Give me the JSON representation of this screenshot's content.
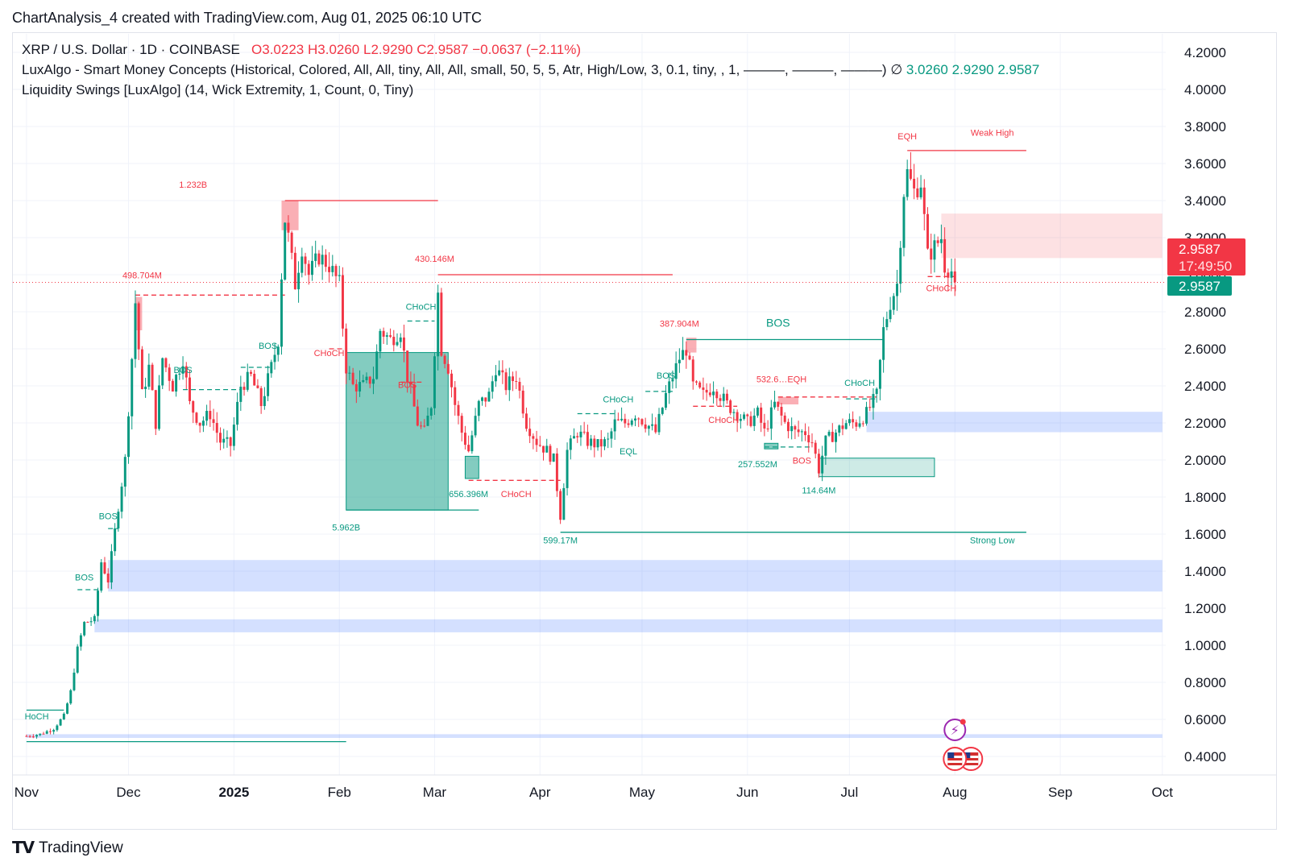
{
  "header": {
    "caption": "ChartAnalysis_4 created with TradingView.com, Aug 01, 2025 06:10 UTC"
  },
  "legend": {
    "symbol_line": {
      "symbol": "XRP / U.S. Dollar · 1D · COINBASE",
      "open": "O3.0223",
      "high": "H3.0260",
      "low": "L2.9290",
      "close": "C2.9587",
      "change": "−0.0637 (−2.11%)"
    },
    "indicator1": {
      "text": "LuxAlgo - Smart Money Concepts (Historical, Colored, All, All, tiny, All, All, small, 50, 5, 5, Atr, High/Low, 3, 0.1, tiny, , 1, ———, ———, ———)",
      "sep": "∅",
      "v1": "3.0260",
      "v2": "2.9290",
      "v3": "2.9587"
    },
    "indicator2": {
      "text": "Liquidity Swings [LuxAlgo] (14, Wick Extremity, 1, Count, 0, Tiny)"
    }
  },
  "footer": {
    "brand": "TradingView",
    "mark_icon": "tradingview-logo-icon"
  },
  "price_tags": {
    "last_price": "2.9587",
    "countdown": "17:49:50",
    "close_price": "2.9587"
  },
  "colors": {
    "up": "#089981",
    "down": "#f23645",
    "blue_zone": "#2962ff",
    "grid": "#f0f3fa",
    "axis_text": "#131722"
  },
  "chart_data": {
    "type": "candlestick",
    "title": "XRP / U.S. Dollar · 1D · COINBASE",
    "ylim": [
      0.3,
      4.3
    ],
    "y_ticks": [
      "0.4000",
      "0.6000",
      "0.8000",
      "1.0000",
      "1.2000",
      "1.4000",
      "1.6000",
      "1.8000",
      "2.0000",
      "2.2000",
      "2.4000",
      "2.6000",
      "2.8000",
      "3.0000",
      "3.2000",
      "3.4000",
      "3.6000",
      "3.8000",
      "4.0000",
      "4.2000"
    ],
    "x_ticks": [
      {
        "label": "Nov",
        "date": "2024-11-01"
      },
      {
        "label": "Dec",
        "date": "2024-12-01"
      },
      {
        "label": "2025",
        "date": "2025-01-01"
      },
      {
        "label": "Feb",
        "date": "2025-02-01"
      },
      {
        "label": "Mar",
        "date": "2025-03-01"
      },
      {
        "label": "Apr",
        "date": "2025-04-01"
      },
      {
        "label": "May",
        "date": "2025-05-01"
      },
      {
        "label": "Jun",
        "date": "2025-06-01"
      },
      {
        "label": "Jul",
        "date": "2025-07-01"
      },
      {
        "label": "Aug",
        "date": "2025-08-01"
      },
      {
        "label": "Sep",
        "date": "2025-09-01"
      },
      {
        "label": "Oct",
        "date": "2025-10-01"
      }
    ],
    "price_path": [
      [
        "2024-11-01",
        0.51
      ],
      [
        "2024-11-05",
        0.52
      ],
      [
        "2024-11-09",
        0.55
      ],
      [
        "2024-11-12",
        0.62
      ],
      [
        "2024-11-14",
        0.75
      ],
      [
        "2024-11-16",
        0.98
      ],
      [
        "2024-11-18",
        1.12
      ],
      [
        "2024-11-21",
        1.14
      ],
      [
        "2024-11-23",
        1.45
      ],
      [
        "2024-11-25",
        1.35
      ],
      [
        "2024-11-28",
        1.75
      ],
      [
        "2024-11-30",
        2.0
      ],
      [
        "2024-12-02",
        2.55
      ],
      [
        "2024-12-03",
        2.85
      ],
      [
        "2024-12-05",
        2.35
      ],
      [
        "2024-12-07",
        2.5
      ],
      [
        "2024-12-09",
        2.2
      ],
      [
        "2024-12-11",
        2.55
      ],
      [
        "2024-12-14",
        2.4
      ],
      [
        "2024-12-17",
        2.55
      ],
      [
        "2024-12-19",
        2.3
      ],
      [
        "2024-12-22",
        2.2
      ],
      [
        "2024-12-25",
        2.25
      ],
      [
        "2024-12-28",
        2.1
      ],
      [
        "2024-12-31",
        2.08
      ],
      [
        "2025-01-03",
        2.4
      ],
      [
        "2025-01-06",
        2.45
      ],
      [
        "2025-01-09",
        2.3
      ],
      [
        "2025-01-12",
        2.5
      ],
      [
        "2025-01-14",
        2.65
      ],
      [
        "2025-01-15",
        3.0
      ],
      [
        "2025-01-16",
        3.3
      ],
      [
        "2025-01-17",
        3.2
      ],
      [
        "2025-01-19",
        2.95
      ],
      [
        "2025-01-21",
        3.15
      ],
      [
        "2025-01-23",
        3.0
      ],
      [
        "2025-01-26",
        3.1
      ],
      [
        "2025-01-29",
        3.05
      ],
      [
        "2025-02-01",
        2.95
      ],
      [
        "2025-02-03",
        2.5
      ],
      [
        "2025-02-05",
        2.4
      ],
      [
        "2025-02-08",
        2.4
      ],
      [
        "2025-02-11",
        2.45
      ],
      [
        "2025-02-13",
        2.7
      ],
      [
        "2025-02-16",
        2.65
      ],
      [
        "2025-02-19",
        2.7
      ],
      [
        "2025-02-21",
        2.45
      ],
      [
        "2025-02-24",
        2.2
      ],
      [
        "2025-02-26",
        2.15
      ],
      [
        "2025-02-28",
        2.3
      ],
      [
        "2025-03-02",
        2.9
      ],
      [
        "2025-03-03",
        2.6
      ],
      [
        "2025-03-05",
        2.5
      ],
      [
        "2025-03-07",
        2.3
      ],
      [
        "2025-03-09",
        2.15
      ],
      [
        "2025-03-11",
        2.05
      ],
      [
        "2025-03-14",
        2.3
      ],
      [
        "2025-03-17",
        2.35
      ],
      [
        "2025-03-19",
        2.5
      ],
      [
        "2025-03-22",
        2.4
      ],
      [
        "2025-03-25",
        2.45
      ],
      [
        "2025-03-28",
        2.2
      ],
      [
        "2025-03-31",
        2.1
      ],
      [
        "2025-04-03",
        2.05
      ],
      [
        "2025-04-05",
        2.0
      ],
      [
        "2025-04-07",
        1.7
      ],
      [
        "2025-04-09",
        2.05
      ],
      [
        "2025-04-12",
        2.15
      ],
      [
        "2025-04-15",
        2.1
      ],
      [
        "2025-04-18",
        2.08
      ],
      [
        "2025-04-21",
        2.1
      ],
      [
        "2025-04-23",
        2.2
      ],
      [
        "2025-04-26",
        2.2
      ],
      [
        "2025-04-29",
        2.25
      ],
      [
        "2025-05-02",
        2.2
      ],
      [
        "2025-05-05",
        2.15
      ],
      [
        "2025-05-08",
        2.35
      ],
      [
        "2025-05-10",
        2.45
      ],
      [
        "2025-05-12",
        2.55
      ],
      [
        "2025-05-14",
        2.6
      ],
      [
        "2025-05-16",
        2.4
      ],
      [
        "2025-05-19",
        2.35
      ],
      [
        "2025-05-22",
        2.4
      ],
      [
        "2025-05-26",
        2.3
      ],
      [
        "2025-05-29",
        2.25
      ],
      [
        "2025-06-01",
        2.2
      ],
      [
        "2025-06-04",
        2.25
      ],
      [
        "2025-06-06",
        2.15
      ],
      [
        "2025-06-09",
        2.3
      ],
      [
        "2025-06-12",
        2.2
      ],
      [
        "2025-06-15",
        2.15
      ],
      [
        "2025-06-18",
        2.15
      ],
      [
        "2025-06-20",
        2.1
      ],
      [
        "2025-06-22",
        1.95
      ],
      [
        "2025-06-24",
        2.1
      ],
      [
        "2025-06-27",
        2.15
      ],
      [
        "2025-06-30",
        2.2
      ],
      [
        "2025-07-03",
        2.2
      ],
      [
        "2025-07-06",
        2.25
      ],
      [
        "2025-07-09",
        2.35
      ],
      [
        "2025-07-11",
        2.7
      ],
      [
        "2025-07-13",
        2.85
      ],
      [
        "2025-07-15",
        2.95
      ],
      [
        "2025-07-17",
        3.45
      ],
      [
        "2025-07-18",
        3.55
      ],
      [
        "2025-07-20",
        3.45
      ],
      [
        "2025-07-22",
        3.5
      ],
      [
        "2025-07-23",
        3.3
      ],
      [
        "2025-07-24",
        3.1
      ],
      [
        "2025-07-26",
        3.15
      ],
      [
        "2025-07-28",
        3.2
      ],
      [
        "2025-07-29",
        3.05
      ],
      [
        "2025-07-31",
        3.02
      ],
      [
        "2025-08-01",
        2.9587
      ]
    ],
    "liquidity_zones": [
      {
        "color": "blue",
        "y_low": 1.29,
        "y_high": 1.46,
        "x_from": "2024-11-25",
        "x_to": "2025-10-01"
      },
      {
        "color": "blue",
        "y_low": 1.07,
        "y_high": 1.14,
        "x_from": "2024-11-21",
        "x_to": "2025-10-01"
      },
      {
        "color": "blue",
        "y_low": 0.5,
        "y_high": 0.52,
        "x_from": "2024-11-01",
        "x_to": "2025-10-01"
      },
      {
        "color": "blue",
        "y_low": 2.15,
        "y_high": 2.26,
        "x_from": "2025-07-06",
        "x_to": "2025-10-01"
      },
      {
        "color": "red",
        "y_low": 3.09,
        "y_high": 3.33,
        "x_from": "2025-07-28",
        "x_to": "2025-10-01"
      }
    ],
    "order_blocks": [
      {
        "color": "green",
        "y_low": 1.73,
        "y_high": 2.58,
        "x_from": "2025-02-03",
        "x_to": "2025-03-05"
      },
      {
        "color": "green",
        "y_low": 1.9,
        "y_high": 2.02,
        "x_from": "2025-03-10",
        "x_to": "2025-03-14"
      },
      {
        "color": "lightgreen",
        "y_low": 1.91,
        "y_high": 2.01,
        "x_from": "2025-06-22",
        "x_to": "2025-07-26"
      },
      {
        "color": "green",
        "y_low": 2.06,
        "y_high": 2.09,
        "x_from": "2025-06-06",
        "x_to": "2025-06-10"
      },
      {
        "color": "red",
        "y_low": 3.24,
        "y_high": 3.4,
        "x_from": "2025-01-15",
        "x_to": "2025-01-20"
      },
      {
        "color": "red",
        "y_low": 2.7,
        "y_high": 2.88,
        "x_from": "2024-12-03",
        "x_to": "2024-12-05"
      },
      {
        "color": "red",
        "y_low": 2.58,
        "y_high": 2.66,
        "x_from": "2025-05-14",
        "x_to": "2025-05-17"
      },
      {
        "color": "red",
        "y_low": 2.3,
        "y_high": 2.34,
        "x_from": "2025-06-10",
        "x_to": "2025-06-16"
      }
    ],
    "levels": [
      {
        "color": "red",
        "style": "solid",
        "y": 3.4,
        "x_from": "2025-01-16",
        "x_to": "2025-03-02"
      },
      {
        "color": "red",
        "style": "solid",
        "y": 3.0,
        "x_from": "2025-03-02",
        "x_to": "2025-05-10"
      },
      {
        "color": "red",
        "style": "dashed",
        "y": 2.89,
        "x_from": "2024-12-03",
        "x_to": "2025-01-16"
      },
      {
        "color": "red",
        "style": "solid",
        "y": 3.67,
        "x_from": "2025-07-18",
        "x_to": "2025-08-22"
      },
      {
        "color": "green",
        "style": "solid",
        "y": 1.61,
        "x_from": "2025-04-07",
        "x_to": "2025-08-22"
      },
      {
        "color": "green",
        "style": "solid",
        "y": 2.65,
        "x_from": "2025-05-14",
        "x_to": "2025-07-11"
      },
      {
        "color": "green",
        "style": "solid",
        "y": 1.73,
        "x_from": "2025-02-03",
        "x_to": "2025-03-14"
      },
      {
        "color": "green",
        "style": "solid",
        "y": 0.48,
        "x_from": "2024-11-01",
        "x_to": "2025-02-03"
      },
      {
        "color": "green",
        "style": "solid",
        "y": 0.65,
        "x_from": "2024-11-01",
        "x_to": "2024-11-12"
      },
      {
        "color": "red",
        "style": "dashed",
        "y": 1.89,
        "x_from": "2025-03-11",
        "x_to": "2025-04-07"
      },
      {
        "color": "red",
        "style": "dashed",
        "y": 2.34,
        "x_from": "2025-06-10",
        "x_to": "2025-07-09"
      },
      {
        "color": "green",
        "style": "dashed",
        "y": 2.5,
        "x_from": "2025-01-03",
        "x_to": "2025-01-12"
      },
      {
        "color": "green",
        "style": "dashed",
        "y": 2.38,
        "x_from": "2024-12-17",
        "x_to": "2025-01-03"
      },
      {
        "color": "green",
        "style": "dashed",
        "y": 1.63,
        "x_from": "2024-11-25",
        "x_to": "2024-11-28"
      },
      {
        "color": "green",
        "style": "dashed",
        "y": 1.3,
        "x_from": "2024-11-16",
        "x_to": "2024-11-23"
      },
      {
        "color": "green",
        "style": "dashed",
        "y": 2.75,
        "x_from": "2025-02-21",
        "x_to": "2025-03-01"
      },
      {
        "color": "green",
        "style": "dashed",
        "y": 2.25,
        "x_from": "2025-04-12",
        "x_to": "2025-04-23"
      },
      {
        "color": "green",
        "style": "dashed",
        "y": 2.37,
        "x_from": "2025-05-02",
        "x_to": "2025-05-10"
      },
      {
        "color": "red",
        "style": "dashed",
        "y": 2.6,
        "x_from": "2025-01-29",
        "x_to": "2025-02-03"
      },
      {
        "color": "red",
        "style": "dashed",
        "y": 2.99,
        "x_from": "2025-07-24",
        "x_to": "2025-08-01"
      },
      {
        "color": "red",
        "style": "dashed",
        "y": 2.29,
        "x_from": "2025-05-16",
        "x_to": "2025-05-29"
      },
      {
        "color": "green",
        "style": "dashed",
        "y": 2.33,
        "x_from": "2025-06-30",
        "x_to": "2025-07-09"
      },
      {
        "color": "green",
        "style": "dashed",
        "y": 2.07,
        "x_from": "2025-06-06",
        "x_to": "2025-06-20"
      },
      {
        "color": "red",
        "style": "dashed",
        "y": 2.42,
        "x_from": "2025-02-19",
        "x_to": "2025-02-26"
      }
    ],
    "labels": [
      {
        "text": "EQH",
        "color": "red",
        "x": "2025-07-18",
        "y": 3.73
      },
      {
        "text": "Weak High",
        "color": "red",
        "x": "2025-08-12",
        "y": 3.75
      },
      {
        "text": "1.232B",
        "color": "red",
        "x": "2024-12-20",
        "y": 3.47
      },
      {
        "text": "430.146M",
        "color": "red",
        "x": "2025-03-01",
        "y": 3.07
      },
      {
        "text": "498.704M",
        "color": "red",
        "x": "2024-12-05",
        "y": 2.98
      },
      {
        "text": "CHoCH",
        "color": "green",
        "x": "2025-02-25",
        "y": 2.81
      },
      {
        "text": "387.904M",
        "color": "red",
        "x": "2025-05-12",
        "y": 2.72
      },
      {
        "text": "BOS",
        "color": "green",
        "x": "2025-06-10",
        "y": 2.72
      },
      {
        "text": "BOS",
        "color": "green",
        "x": "2025-01-11",
        "y": 2.6
      },
      {
        "text": "CHoCH",
        "color": "red",
        "x": "2025-01-29",
        "y": 2.56
      },
      {
        "text": "BOS",
        "color": "green",
        "x": "2024-12-17",
        "y": 2.47
      },
      {
        "text": "BOS",
        "color": "green",
        "x": "2025-05-08",
        "y": 2.44
      },
      {
        "text": "532.6…EQH",
        "color": "red",
        "x": "2025-06-11",
        "y": 2.42
      },
      {
        "text": "BOS",
        "color": "red",
        "x": "2025-02-21",
        "y": 2.39
      },
      {
        "text": "CHoCH",
        "color": "green",
        "x": "2025-07-04",
        "y": 2.4
      },
      {
        "text": "CHoCH",
        "color": "green",
        "x": "2025-04-24",
        "y": 2.31
      },
      {
        "text": "CHoCH",
        "color": "red",
        "x": "2025-05-25",
        "y": 2.2
      },
      {
        "text": "CHoCH",
        "color": "red",
        "x": "2025-07-28",
        "y": 2.91
      },
      {
        "text": "EQL",
        "color": "green",
        "x": "2025-04-27",
        "y": 2.03
      },
      {
        "text": "257.552M",
        "color": "green",
        "x": "2025-06-04",
        "y": 1.96
      },
      {
        "text": "BOS",
        "color": "red",
        "x": "2025-06-17",
        "y": 1.98
      },
      {
        "text": "656.396M",
        "color": "green",
        "x": "2025-03-11",
        "y": 1.8
      },
      {
        "text": "CHoCH",
        "color": "red",
        "x": "2025-03-25",
        "y": 1.8
      },
      {
        "text": "114.64M",
        "color": "green",
        "x": "2025-06-22",
        "y": 1.82
      },
      {
        "text": "5.962B",
        "color": "green",
        "x": "2025-02-03",
        "y": 1.62
      },
      {
        "text": "599.17M",
        "color": "green",
        "x": "2025-04-07",
        "y": 1.55
      },
      {
        "text": "Strong Low",
        "color": "green",
        "x": "2025-08-12",
        "y": 1.55
      },
      {
        "text": "BOS",
        "color": "green",
        "x": "2024-11-25",
        "y": 1.68
      },
      {
        "text": "BOS",
        "color": "green",
        "x": "2024-11-18",
        "y": 1.35
      },
      {
        "text": "HoCH",
        "color": "green",
        "x": "2024-11-04",
        "y": 0.6
      }
    ],
    "last_price": 2.9587
  }
}
